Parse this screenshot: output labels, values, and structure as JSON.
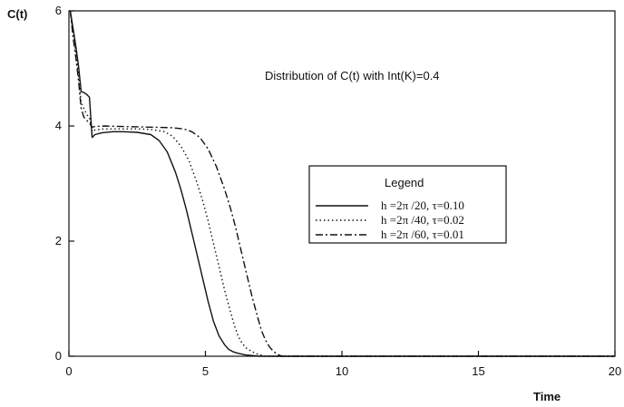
{
  "chart_data": {
    "type": "line",
    "title": "",
    "annotation": "Distribution of  C(t)  with Int(K)=0.4",
    "xlabel": "Time",
    "ylabel": "C(t)",
    "xlim": [
      0,
      20
    ],
    "ylim": [
      0,
      6
    ],
    "xticks": [
      0,
      5,
      10,
      15,
      20
    ],
    "yticks": [
      0,
      2,
      4,
      6
    ],
    "grid": false,
    "legend": {
      "title": "Legend",
      "placement": "center-right",
      "entries": [
        "h  =2π /20,  τ=0.10",
        "h  =2π /40,  τ=0.02",
        "h  =2π /60,  τ=0.01"
      ]
    },
    "series": [
      {
        "name": "h  =2π /20,  τ=0.10",
        "style": "solid",
        "x": [
          0.05,
          0.15,
          0.25,
          0.35,
          0.45,
          0.55,
          0.65,
          0.75,
          0.85,
          0.95,
          1.2,
          1.6,
          2.0,
          2.5,
          3.0,
          3.3,
          3.6,
          3.9,
          4.1,
          4.3,
          4.5,
          4.7,
          4.9,
          5.1,
          5.3,
          5.5,
          5.7,
          5.85,
          6.0,
          6.2,
          6.5,
          7.0,
          8.0,
          10.0,
          15.0,
          20.0
        ],
        "y": [
          6.0,
          5.7,
          5.4,
          5.05,
          4.6,
          4.58,
          4.55,
          4.5,
          3.8,
          3.85,
          3.88,
          3.9,
          3.9,
          3.89,
          3.85,
          3.75,
          3.55,
          3.2,
          2.9,
          2.55,
          2.15,
          1.75,
          1.35,
          0.95,
          0.6,
          0.35,
          0.2,
          0.12,
          0.08,
          0.05,
          0.02,
          0.0,
          0.0,
          0.0,
          0.0,
          0.0
        ]
      },
      {
        "name": "h  =2π /40,  τ=0.02",
        "style": "dotted",
        "x": [
          0.05,
          0.15,
          0.25,
          0.35,
          0.45,
          0.55,
          0.65,
          0.75,
          0.85,
          0.95,
          1.3,
          2.0,
          2.5,
          3.0,
          3.5,
          3.8,
          4.1,
          4.4,
          4.7,
          4.9,
          5.1,
          5.3,
          5.5,
          5.7,
          5.9,
          6.05,
          6.2,
          6.35,
          6.5,
          6.7,
          6.9,
          7.2,
          8.0,
          10.0,
          15.0,
          20.0
        ],
        "y": [
          6.0,
          5.6,
          5.3,
          4.9,
          4.4,
          4.3,
          4.2,
          4.15,
          3.9,
          3.93,
          3.95,
          3.95,
          3.95,
          3.94,
          3.9,
          3.82,
          3.65,
          3.4,
          3.0,
          2.7,
          2.35,
          1.95,
          1.55,
          1.15,
          0.8,
          0.55,
          0.35,
          0.22,
          0.14,
          0.08,
          0.04,
          0.0,
          0.0,
          0.0,
          0.0,
          0.0
        ]
      },
      {
        "name": "h  =2π /60,  τ=0.01",
        "style": "dash-dot",
        "x": [
          0.05,
          0.15,
          0.25,
          0.35,
          0.45,
          0.55,
          0.65,
          0.75,
          0.85,
          0.95,
          1.3,
          2.0,
          3.0,
          3.8,
          4.2,
          4.5,
          4.8,
          5.1,
          5.4,
          5.7,
          5.9,
          6.1,
          6.3,
          6.5,
          6.7,
          6.9,
          7.05,
          7.2,
          7.35,
          7.5,
          7.65,
          7.8,
          8.2,
          10.0,
          15.0,
          20.0
        ],
        "y": [
          6.0,
          5.55,
          5.2,
          4.8,
          4.3,
          4.15,
          4.1,
          4.05,
          3.98,
          3.99,
          4.0,
          3.99,
          3.98,
          3.97,
          3.95,
          3.9,
          3.8,
          3.6,
          3.3,
          2.9,
          2.6,
          2.25,
          1.85,
          1.45,
          1.05,
          0.7,
          0.45,
          0.28,
          0.16,
          0.08,
          0.03,
          0.0,
          0.0,
          0.0,
          0.0,
          0.0
        ]
      }
    ]
  }
}
